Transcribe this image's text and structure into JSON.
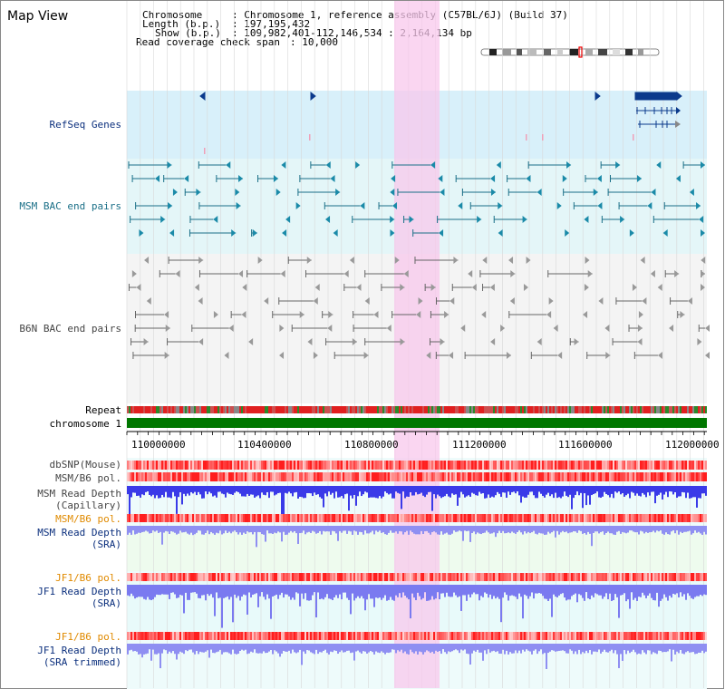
{
  "title": "Map View",
  "info": {
    "chromosome_key": "Chromosome",
    "chromosome_val": ": Chromosome 1, reference assembly (C57BL/6J) (Build 37)",
    "length_key": "Length (b.p.)",
    "length_val": ": 197,195,432",
    "show_key": "Show (b.p.)",
    "show_val": ": 109,982,401-112,146,534 : 2,164,134 bp",
    "coverage_key": "Read coverage check span",
    "coverage_val": ": 10,000"
  },
  "tracks": {
    "refseq": "RefSeq Genes",
    "msm_bac": "MSM BAC end pairs",
    "b6n_bac": "B6N BAC end pairs",
    "repeat": "Repeat",
    "chromosome": "chromosome 1",
    "dbsnp": "dbSNP(Mouse)",
    "msm_b6_pol_1": "MSM/B6 pol.",
    "msm_depth_cap_1": "MSM Read Depth",
    "msm_depth_cap_2": "(Capillary)",
    "msm_b6_pol_2": "MSM/B6 pol.",
    "msm_depth_sra_1": "MSM Read Depth",
    "msm_depth_sra_2": "(SRA)",
    "jf1_b6_pol_1": "JF1/B6 pol.",
    "jf1_depth_sra_1": "JF1 Read Depth",
    "jf1_depth_sra_2": "(SRA)",
    "jf1_b6_pol_2": "JF1/B6 pol.",
    "jf1_depth_trim_1": "JF1 Read Depth",
    "jf1_depth_trim_2": "(SRA trimmed)"
  },
  "axis": {
    "ticks": [
      "110000000",
      "110400000",
      "110800000",
      "111200000",
      "111600000",
      "112000000"
    ]
  },
  "colors": {
    "refseq_bg": "#d8f0fa",
    "msm_bg": "#e4f6f8",
    "b6n_bg": "#f4f4f4",
    "highlight": "#f8d6f0",
    "chromosome_bar": "#007700",
    "depth_blue": "#3a3ae8",
    "depth_light": "#8f8ff2"
  }
}
